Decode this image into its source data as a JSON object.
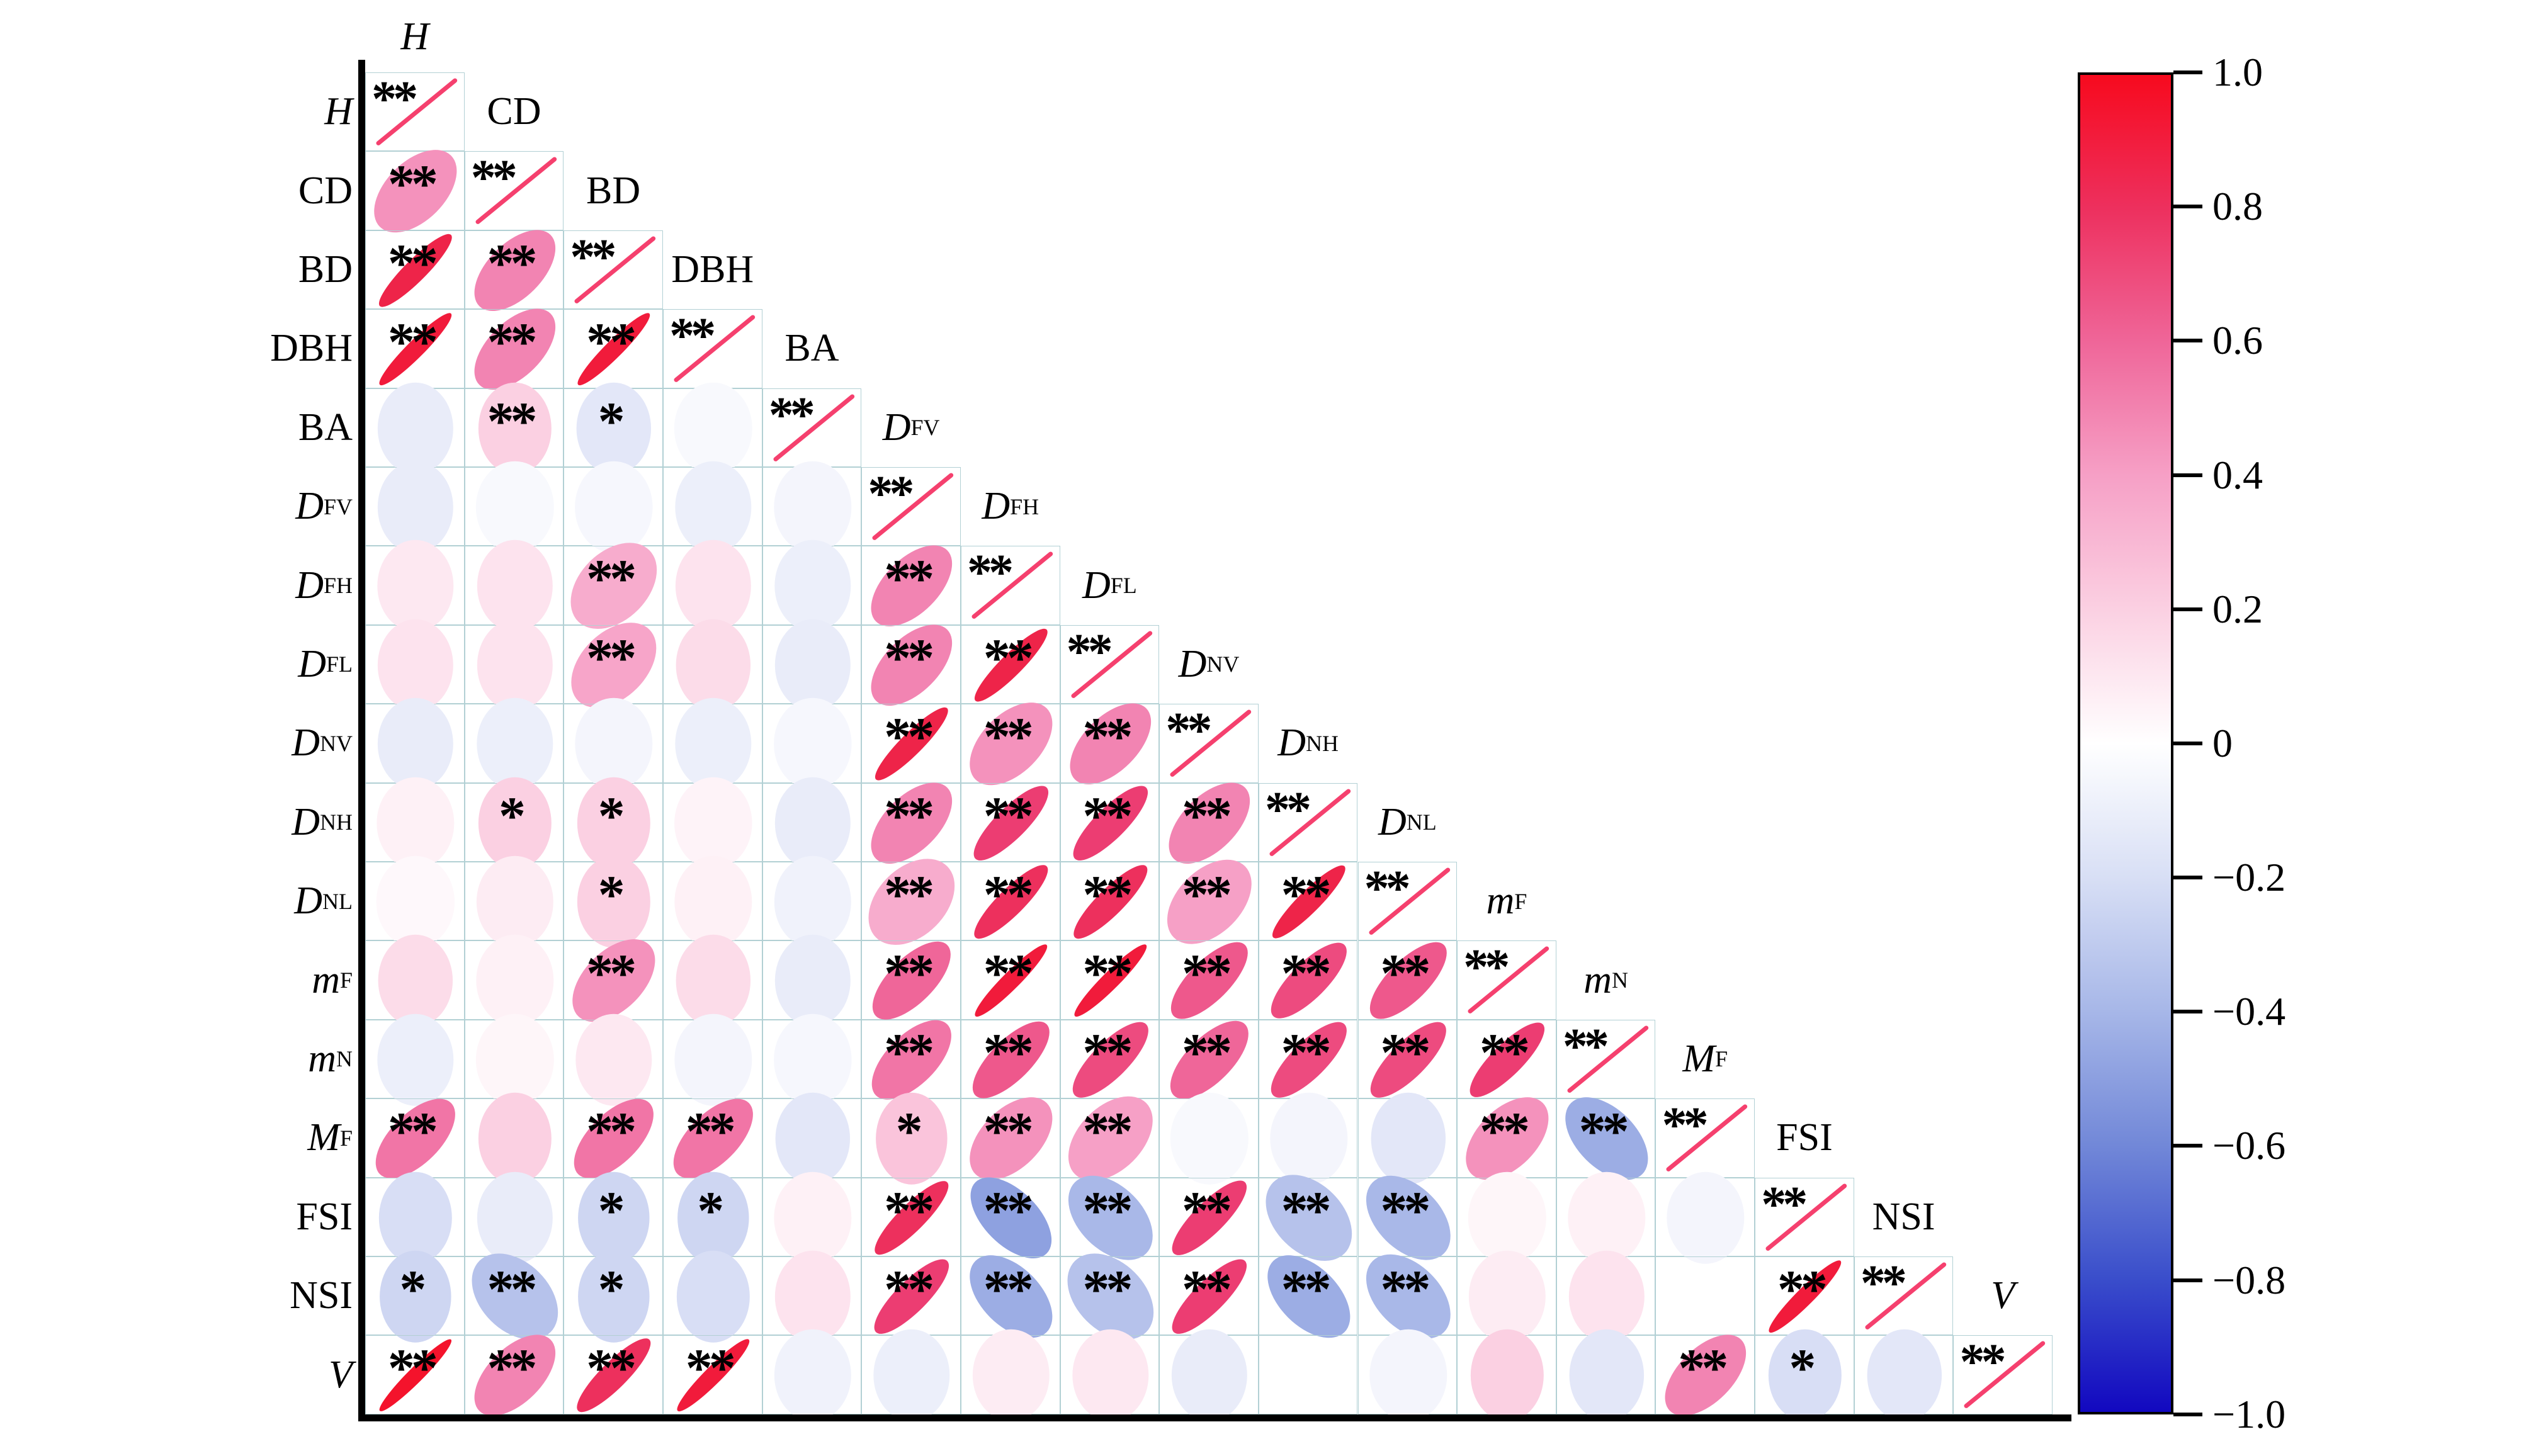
{
  "figure": {
    "description": "Lower-triangular correlation ellipse matrix (corrplot style) with significance stars and vertical colorbar",
    "background": "#ffffff"
  },
  "colors": {
    "gridline": "#b2d0d4",
    "axis": "#000000",
    "diagonal_slash": "#f5406e",
    "star": "#000000",
    "positive_max": "#f70a1e",
    "negative_max": "#1208c0",
    "zero": "#ffffff"
  },
  "chart_data": {
    "type": "heatmap",
    "subtype": "correlation-ellipse-matrix",
    "title": "",
    "legend_position": "right-colorbar",
    "variables": [
      {
        "id": "H",
        "text": "H",
        "sub": "",
        "italic": true
      },
      {
        "id": "CD",
        "text": "CD",
        "sub": "",
        "italic": false
      },
      {
        "id": "BD",
        "text": "BD",
        "sub": "",
        "italic": false
      },
      {
        "id": "DBH",
        "text": "DBH",
        "sub": "",
        "italic": false
      },
      {
        "id": "BA",
        "text": "BA",
        "sub": "",
        "italic": false
      },
      {
        "id": "DFV",
        "text": "D",
        "sub": "FV",
        "italic": true
      },
      {
        "id": "DFH",
        "text": "D",
        "sub": "FH",
        "italic": true
      },
      {
        "id": "DFL",
        "text": "D",
        "sub": "FL",
        "italic": true
      },
      {
        "id": "DNV",
        "text": "D",
        "sub": "NV",
        "italic": true
      },
      {
        "id": "DNH",
        "text": "D",
        "sub": "NH",
        "italic": true
      },
      {
        "id": "DNL",
        "text": "D",
        "sub": "NL",
        "italic": true
      },
      {
        "id": "mF",
        "text": "m",
        "sub": "F",
        "italic": true
      },
      {
        "id": "mN",
        "text": "m",
        "sub": "N",
        "italic": true
      },
      {
        "id": "MF",
        "text": "M",
        "sub": "F",
        "italic": true
      },
      {
        "id": "FSI",
        "text": "FSI",
        "sub": "",
        "italic": false
      },
      {
        "id": "NSI",
        "text": "NSI",
        "sub": "",
        "italic": false
      },
      {
        "id": "V",
        "text": "V",
        "sub": "",
        "italic": true
      }
    ],
    "matrix": [
      [
        1
      ],
      [
        0.45,
        1
      ],
      [
        0.85,
        0.5,
        1
      ],
      [
        0.9,
        0.5,
        0.9,
        1
      ],
      [
        -0.12,
        0.2,
        -0.15,
        -0.04,
        1
      ],
      [
        -0.12,
        -0.04,
        -0.05,
        -0.1,
        -0.06,
        1
      ],
      [
        0.1,
        0.12,
        0.35,
        0.12,
        -0.1,
        0.5,
        1
      ],
      [
        0.12,
        0.12,
        0.38,
        0.15,
        -0.12,
        0.5,
        0.85,
        1
      ],
      [
        -0.12,
        -0.1,
        -0.06,
        -0.1,
        -0.05,
        0.85,
        0.45,
        0.5,
        1
      ],
      [
        0.06,
        0.2,
        0.2,
        0.05,
        -0.12,
        0.5,
        0.75,
        0.75,
        0.5,
        1
      ],
      [
        0.03,
        0.08,
        0.2,
        0.06,
        -0.08,
        0.35,
        0.8,
        0.8,
        0.4,
        0.85,
        1
      ],
      [
        0.15,
        0.06,
        0.45,
        0.15,
        -0.12,
        0.6,
        0.9,
        0.9,
        0.65,
        0.7,
        0.65,
        1
      ],
      [
        -0.1,
        0.04,
        0.1,
        -0.06,
        -0.05,
        0.55,
        0.65,
        0.7,
        0.6,
        0.7,
        0.7,
        0.75,
        1
      ],
      [
        0.55,
        0.2,
        0.55,
        0.55,
        -0.15,
        0.25,
        0.45,
        0.4,
        -0.04,
        -0.06,
        -0.15,
        0.45,
        -0.45,
        1
      ],
      [
        -0.2,
        -0.12,
        -0.25,
        -0.25,
        0.06,
        0.8,
        -0.5,
        -0.4,
        0.75,
        -0.35,
        -0.4,
        0.04,
        0.06,
        -0.06,
        1
      ],
      [
        -0.25,
        -0.35,
        -0.25,
        -0.2,
        0.12,
        0.75,
        -0.45,
        -0.35,
        0.75,
        -0.45,
        -0.4,
        0.08,
        0.12,
        0.01,
        0.9,
        1
      ],
      [
        0.95,
        0.5,
        0.8,
        0.9,
        -0.08,
        -0.1,
        0.08,
        0.1,
        -0.12,
        0.0,
        -0.06,
        0.2,
        -0.15,
        0.5,
        -0.2,
        -0.15,
        1
      ]
    ],
    "significance": [
      [
        "**"
      ],
      [
        "**",
        "**"
      ],
      [
        "**",
        "**",
        "**"
      ],
      [
        "**",
        "**",
        "**",
        "**"
      ],
      [
        "",
        "**",
        "*",
        "",
        "**"
      ],
      [
        "",
        "",
        "",
        "",
        "",
        "**"
      ],
      [
        "",
        "",
        "**",
        "",
        "",
        "**",
        "**"
      ],
      [
        "",
        "",
        "**",
        "",
        "",
        "**",
        "**",
        "**"
      ],
      [
        "",
        "",
        "",
        "",
        "",
        "**",
        "**",
        "**",
        "**"
      ],
      [
        "",
        "*",
        "*",
        "",
        "",
        "**",
        "**",
        "**",
        "**",
        "**"
      ],
      [
        "",
        "",
        "*",
        "",
        "",
        "**",
        "**",
        "**",
        "**",
        "**",
        "**"
      ],
      [
        "",
        "",
        "**",
        "",
        "",
        "**",
        "**",
        "**",
        "**",
        "**",
        "**",
        "**"
      ],
      [
        "",
        "",
        "",
        "",
        "",
        "**",
        "**",
        "**",
        "**",
        "**",
        "**",
        "**",
        "**"
      ],
      [
        "**",
        "",
        "**",
        "**",
        "",
        "*",
        "**",
        "**",
        "",
        "",
        "",
        "**",
        "**",
        "**"
      ],
      [
        "",
        "",
        "*",
        "*",
        "",
        "**",
        "**",
        "**",
        "**",
        "**",
        "**",
        "",
        "",
        "",
        "**"
      ],
      [
        "*",
        "**",
        "*",
        "",
        "",
        "**",
        "**",
        "**",
        "**",
        "**",
        "**",
        "",
        "",
        "",
        "**",
        "**"
      ],
      [
        "**",
        "**",
        "**",
        "**",
        "",
        "",
        "",
        "",
        "",
        "",
        "",
        "",
        "",
        "**",
        "*",
        "",
        "**"
      ]
    ],
    "colorbar": {
      "range": [
        -1,
        1
      ],
      "ticks": [
        {
          "value": 1.0,
          "label": "1.0"
        },
        {
          "value": 0.8,
          "label": "0.8"
        },
        {
          "value": 0.6,
          "label": "0.6"
        },
        {
          "value": 0.4,
          "label": "0.4"
        },
        {
          "value": 0.2,
          "label": "0.2"
        },
        {
          "value": 0.0,
          "label": "0"
        },
        {
          "value": -0.2,
          "label": "−0.2"
        },
        {
          "value": -0.4,
          "label": "−0.4"
        },
        {
          "value": -0.6,
          "label": "−0.6"
        },
        {
          "value": -0.8,
          "label": "−0.8"
        },
        {
          "value": -1.0,
          "label": "−1.0"
        }
      ],
      "gradient_top_to_bottom": [
        "#f70a1e",
        "#ed305e",
        "#ef6699",
        "#f6a0c6",
        "#fbd0e2",
        "#ffffff",
        "#d8dff5",
        "#a7b7e8",
        "#7288d8",
        "#3a4ecb",
        "#1208c0"
      ]
    }
  }
}
